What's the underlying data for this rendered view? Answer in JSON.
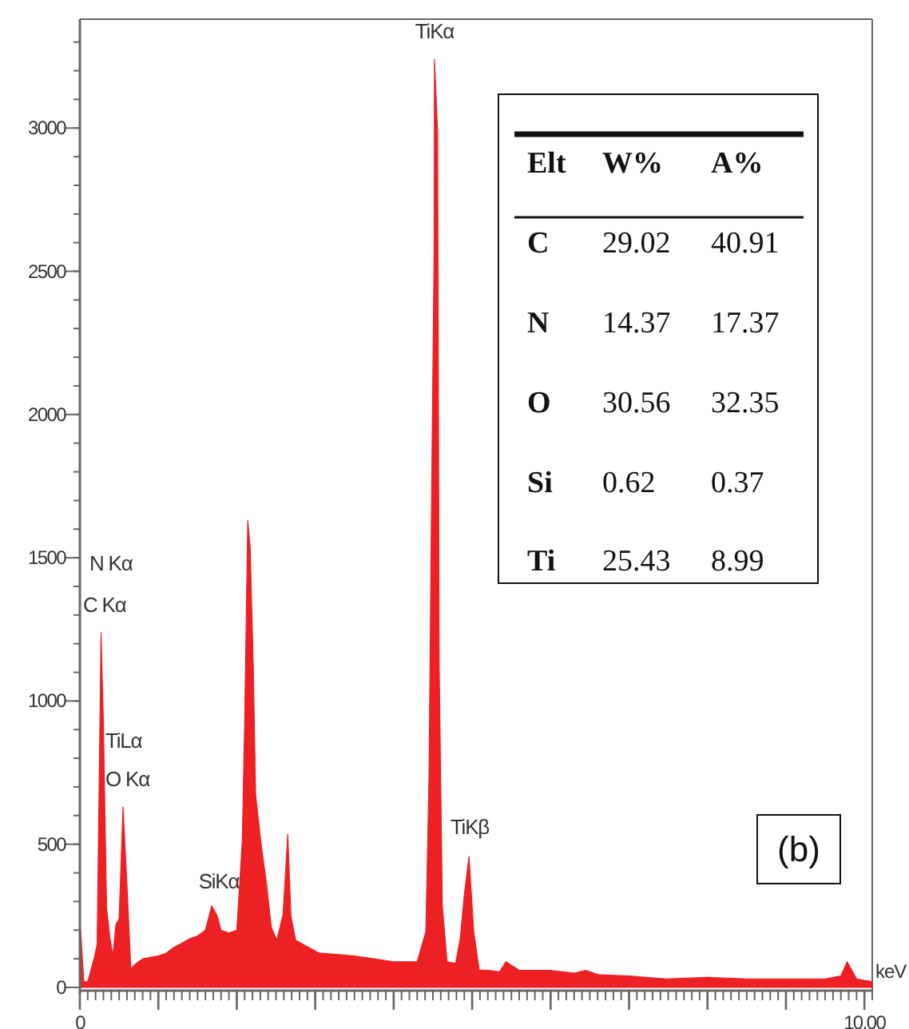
{
  "chart_data": {
    "type": "area",
    "xlabel": "keV",
    "xlim": [
      0,
      10.1
    ],
    "ylim": [
      0,
      3380
    ],
    "xticks": [
      0,
      {
        "value": 1,
        "label": null
      },
      {
        "value": 2,
        "label": null
      },
      {
        "value": 3,
        "label": null
      },
      {
        "value": 4,
        "label": null
      },
      {
        "value": 5,
        "label": null
      },
      {
        "value": 6,
        "label": null
      },
      {
        "value": 7,
        "label": null
      },
      {
        "value": 8,
        "label": null
      },
      {
        "value": 9,
        "label": null
      },
      {
        "value": 10,
        "label": "10.00"
      }
    ],
    "yticks": [
      0,
      500,
      1000,
      1500,
      2000,
      2500,
      3000
    ],
    "grid": false,
    "x": [
      0,
      0.01,
      0.05,
      0.1,
      0.14,
      0.18,
      0.22,
      0.27,
      0.3,
      0.34,
      0.38,
      0.42,
      0.46,
      0.5,
      0.55,
      0.6,
      0.65,
      0.7,
      0.8,
      0.9,
      1.0,
      1.1,
      1.2,
      1.3,
      1.4,
      1.5,
      1.6,
      1.68,
      1.75,
      1.8,
      1.9,
      2.0,
      2.07,
      2.1,
      2.14,
      2.17,
      2.21,
      2.24,
      2.31,
      2.38,
      2.44,
      2.51,
      2.59,
      2.65,
      2.69,
      2.75,
      2.85,
      3.05,
      3.3,
      3.5,
      3.75,
      4.0,
      4.3,
      4.41,
      4.45,
      4.48,
      4.515,
      4.52,
      4.56,
      4.58,
      4.62,
      4.68,
      4.79,
      4.85,
      4.9,
      4.96,
      5.02,
      5.09,
      5.2,
      5.35,
      5.43,
      5.6,
      6.0,
      6.3,
      6.45,
      6.6,
      7.0,
      7.47,
      8.0,
      8.5,
      9.0,
      9.5,
      9.7,
      9.78,
      9.9,
      10.1
    ],
    "series": [
      {
        "color": "#ed2024",
        "values": [
          0,
          200,
          20,
          20,
          60,
          100,
          150,
          1240,
          920,
          280,
          180,
          110,
          220,
          240,
          630,
          360,
          65,
          80,
          100,
          105,
          110,
          120,
          140,
          155,
          170,
          180,
          200,
          285,
          250,
          200,
          190,
          200,
          510,
          920,
          1630,
          1540,
          1120,
          675,
          500,
          360,
          210,
          165,
          255,
          535,
          250,
          165,
          150,
          120,
          115,
          110,
          100,
          90,
          90,
          195,
          730,
          1634,
          2565,
          3240,
          2983,
          1120,
          285,
          90,
          84,
          175,
          323,
          457,
          195,
          61,
          60,
          55,
          90,
          60,
          60,
          50,
          60,
          45,
          40,
          30,
          35,
          30,
          30,
          30,
          40,
          90,
          30,
          20
        ]
      }
    ],
    "annotations": [
      "N Kα",
      "C Kα",
      "TiLα",
      "O Kα",
      "SiKα",
      "TiKα",
      "TiKβ",
      "Elt",
      "W%",
      "A%",
      "C",
      "29.02",
      "40.91",
      "N",
      "14.37",
      "17.37",
      "O",
      "30.56",
      "32.35",
      "Si",
      "0.62",
      "0.37",
      "Ti",
      "25.43",
      "8.99",
      "(b)"
    ]
  }
}
